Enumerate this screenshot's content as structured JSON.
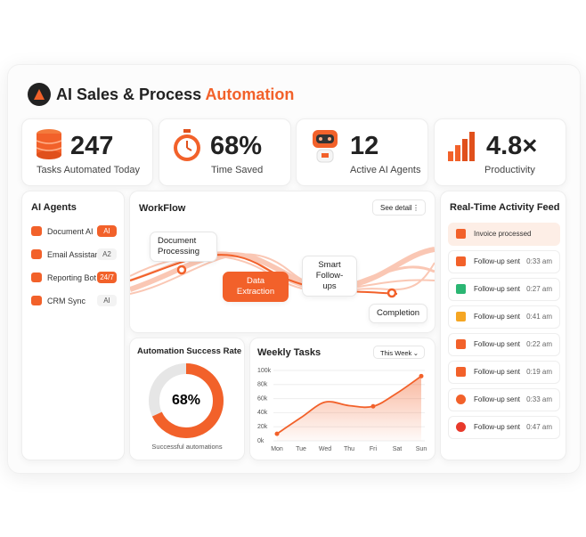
{
  "header": {
    "title": "AI Sales & Process",
    "title_accent": "Automation"
  },
  "kpis": [
    {
      "value": "247",
      "label": "Tasks Automated Today"
    },
    {
      "value": "68%",
      "label": "Time Saved"
    },
    {
      "value": "12",
      "label": "Active AI Agents"
    },
    {
      "value": "4.8×",
      "label": "Productivity"
    }
  ],
  "agents": {
    "title": "AI Agents",
    "items": [
      {
        "name": "Document AI",
        "badge": "AI"
      },
      {
        "name": "Email Assistant",
        "badge": "A2"
      },
      {
        "name": "Reporting Bot",
        "badge": "24/7"
      },
      {
        "name": "CRM Sync",
        "badge": "AI"
      }
    ]
  },
  "workflow": {
    "title": "WorkFlow",
    "button": "See detail",
    "steps": [
      "Document Processing",
      "Data Extraction",
      "Smart Follow-ups",
      "Completion"
    ]
  },
  "success_rate": {
    "type": "donut",
    "title": "Automation Success Rate",
    "value": 68,
    "value_label": "68%",
    "caption": "Successful automations",
    "color": "#f2612a"
  },
  "weekly_tasks": {
    "type": "line",
    "title": "Weekly Tasks",
    "filter": "This Week",
    "categories": [
      "Mon",
      "Tue",
      "Wed",
      "Thu",
      "Fri",
      "Sat",
      "Sun"
    ],
    "values": [
      10000,
      33000,
      55000,
      50000,
      49000,
      68000,
      92000
    ],
    "color": "#f2612a",
    "ylim": [
      0,
      100000
    ],
    "yticks": [
      {
        "value": 0,
        "label": "0k"
      },
      {
        "value": 20000,
        "label": "20k"
      },
      {
        "value": 40000,
        "label": "40k"
      },
      {
        "value": 60000,
        "label": "60k"
      },
      {
        "value": 80000,
        "label": "80k"
      },
      {
        "value": 100000,
        "label": "100k"
      }
    ]
  },
  "activity": {
    "title": "Real-Time Activity Feed",
    "items": [
      {
        "text": "Invoice processed"
      },
      {
        "text": "Follow-up sent",
        "time": "0:33 am"
      },
      {
        "text": "Follow-up sent",
        "time": "0:27 am"
      },
      {
        "text": "Follow-up sent",
        "time": "0:41 am"
      },
      {
        "text": "Follow-up sent",
        "time": "0:22 am"
      },
      {
        "text": "Follow-up sent",
        "time": "0:19 am"
      },
      {
        "text": "Follow-up sent",
        "time": "0:33 am"
      },
      {
        "text": "Follow-up sent",
        "time": "0:47 am"
      }
    ]
  }
}
